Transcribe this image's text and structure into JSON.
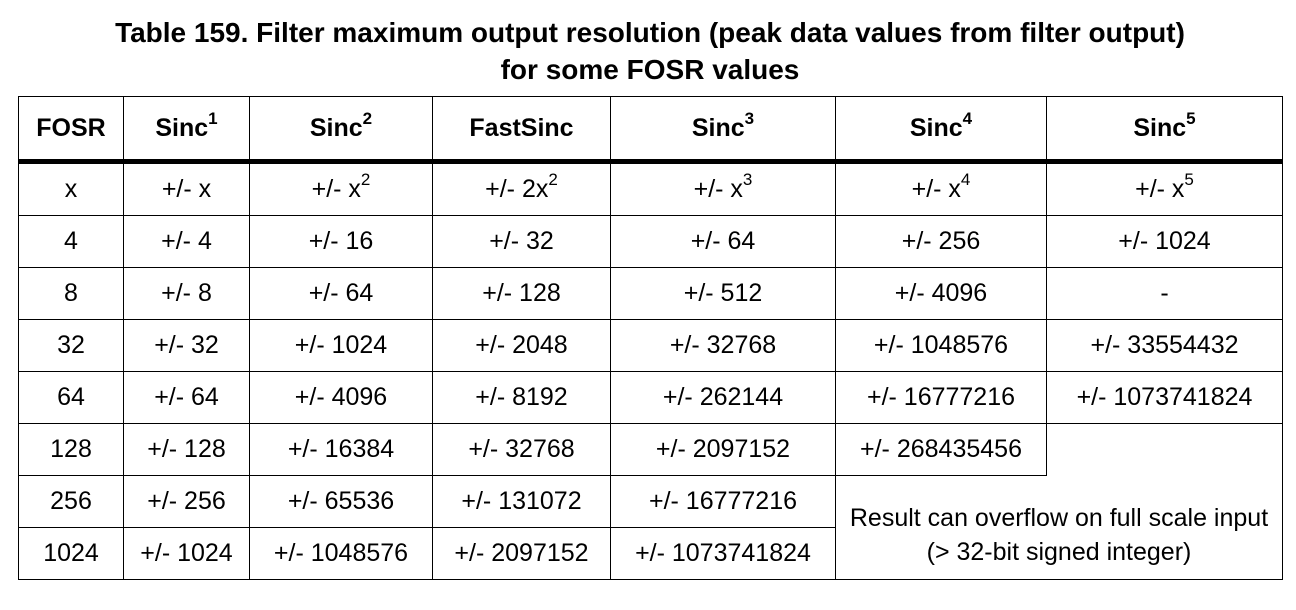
{
  "caption": {
    "line1": "Table 159. Filter maximum output resolution (peak data values from filter output)",
    "line2": "for some FOSR values"
  },
  "header": {
    "fosr": "FOSR",
    "sinc1": {
      "base": "Sinc",
      "sup": "1"
    },
    "sinc2": {
      "base": "Sinc",
      "sup": "2"
    },
    "fastsinc": "FastSinc",
    "sinc3": {
      "base": "Sinc",
      "sup": "3"
    },
    "sinc4": {
      "base": "Sinc",
      "sup": "4"
    },
    "sinc5": {
      "base": "Sinc",
      "sup": "5"
    }
  },
  "formula_row": {
    "fosr": "x",
    "sinc1": "+/- x",
    "sinc2": {
      "base": "+/- x",
      "sup": "2"
    },
    "fastsinc": {
      "base": "+/- 2x",
      "sup": "2"
    },
    "sinc3": {
      "base": "+/- x",
      "sup": "3"
    },
    "sinc4": {
      "base": "+/- x",
      "sup": "4"
    },
    "sinc5": {
      "base": "+/- x",
      "sup": "5"
    }
  },
  "rows": [
    [
      "4",
      "+/- 4",
      "+/- 16",
      "+/- 32",
      "+/- 64",
      "+/- 256",
      "+/- 1024"
    ],
    [
      "8",
      "+/- 8",
      "+/- 64",
      "+/- 128",
      "+/- 512",
      "+/- 4096",
      "-"
    ],
    [
      "32",
      "+/- 32",
      "+/- 1024",
      "+/- 2048",
      "+/- 32768",
      "+/- 1048576",
      "+/- 33554432"
    ],
    [
      "64",
      "+/- 64",
      "+/- 4096",
      "+/- 8192",
      "+/- 262144",
      "+/- 16777216",
      "+/- 1073741824"
    ],
    [
      "128",
      "+/- 128",
      "+/- 16384",
      "+/- 32768",
      "+/- 2097152",
      "+/- 268435456"
    ],
    [
      "256",
      "+/- 256",
      "+/- 65536",
      "+/- 131072",
      "+/- 16777216"
    ],
    [
      "1024",
      "+/- 1024",
      "+/- 1048576",
      "+/- 2097152",
      "+/- 1073741824"
    ]
  ],
  "overflow_note": "Result can overflow on full scale input (> 32-bit signed integer)"
}
